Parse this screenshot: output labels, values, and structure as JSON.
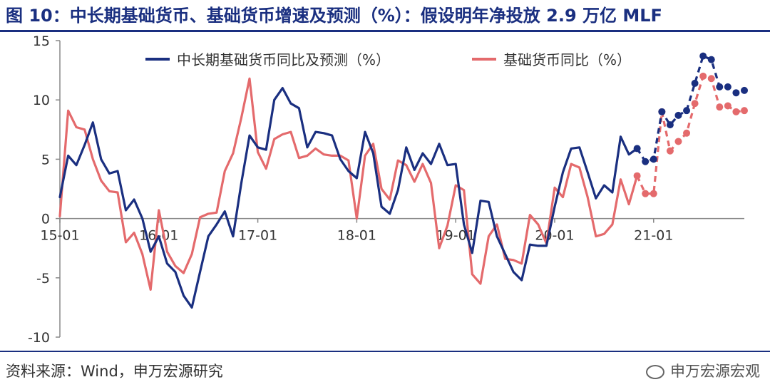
{
  "title": "图 10：中长期基础货币、基础货币增速及预测（%）：假设明年净投放 2.9 万亿 MLF",
  "source": "资料来源：Wind，申万宏源研究",
  "watermark": "申万宏源宏观",
  "chart_data": {
    "type": "line",
    "title": "图 10：中长期基础货币、基础货币增速及预测（%）：假设明年净投放 2.9 万亿 MLF",
    "xlabel": "",
    "ylabel": "",
    "ylim": [
      -10,
      15
    ],
    "yticks": [
      -10,
      -5,
      0,
      5,
      10,
      15
    ],
    "xtick_labels": [
      "15-01",
      "16-01",
      "17-01",
      "18-01",
      "19-01",
      "20-01",
      "21-01"
    ],
    "grid": false,
    "legend_position": "top",
    "x_months_start": "2015-01",
    "series": [
      {
        "name": "中长期基础货币同比及预测（%）",
        "color": "#1a2f80",
        "values": [
          1.8,
          5.3,
          4.5,
          6.2,
          8.1,
          5.0,
          3.8,
          4.0,
          0.7,
          1.6,
          0.0,
          -2.8,
          -1.5,
          -3.8,
          -4.5,
          -6.5,
          -7.5,
          -4.5,
          -1.5,
          -0.5,
          0.6,
          -1.5,
          3.0,
          7.0,
          6.0,
          5.8,
          10.0,
          11.0,
          9.7,
          9.3,
          6.0,
          7.3,
          7.2,
          7.0,
          5.0,
          4.0,
          3.4,
          7.3,
          5.5,
          1.0,
          0.4,
          2.4,
          6.0,
          4.1,
          5.5,
          4.6,
          6.3,
          4.5,
          4.6,
          -0.5,
          -2.9,
          1.5,
          1.4,
          -1.5,
          -3.0,
          -4.5,
          -5.2,
          -2.2,
          -2.3,
          -2.3,
          1.0,
          3.9,
          5.9,
          6.0,
          3.9,
          1.7,
          2.8,
          2.2,
          6.9,
          5.4,
          5.9,
          4.8,
          5.0,
          9.0,
          7.9,
          8.7,
          9.1,
          11.4,
          13.7,
          13.4,
          11.1,
          11.1,
          10.6,
          10.8
        ],
        "forecast_from_index": 70
      },
      {
        "name": "基础货币同比（%）",
        "color": "#e46a6c",
        "values": [
          0.2,
          9.1,
          7.7,
          7.5,
          5.0,
          3.2,
          2.3,
          2.2,
          -2.0,
          -1.2,
          -3.0,
          -6.0,
          0.7,
          -2.8,
          -4.0,
          -4.6,
          -3.0,
          0.1,
          0.4,
          0.5,
          4.0,
          5.5,
          8.5,
          11.8,
          5.6,
          4.2,
          6.7,
          7.1,
          7.3,
          5.1,
          5.3,
          5.9,
          5.4,
          5.3,
          5.3,
          4.9,
          0.0,
          5.3,
          6.3,
          2.5,
          1.6,
          4.9,
          4.5,
          3.1,
          4.6,
          3.0,
          -2.5,
          -0.6,
          2.8,
          2.4,
          -4.7,
          -5.5,
          -1.5,
          -0.5,
          -3.4,
          -3.5,
          -3.8,
          0.3,
          -0.5,
          -2.1,
          2.6,
          1.8,
          4.6,
          4.3,
          1.8,
          -1.5,
          -1.3,
          -0.5,
          3.3,
          1.2,
          3.6,
          2.1,
          2.1,
          9.0,
          5.7,
          6.5,
          7.2,
          9.7,
          12.0,
          11.8,
          9.4,
          9.5,
          9.0,
          9.1
        ],
        "forecast_from_index": 70
      }
    ]
  }
}
